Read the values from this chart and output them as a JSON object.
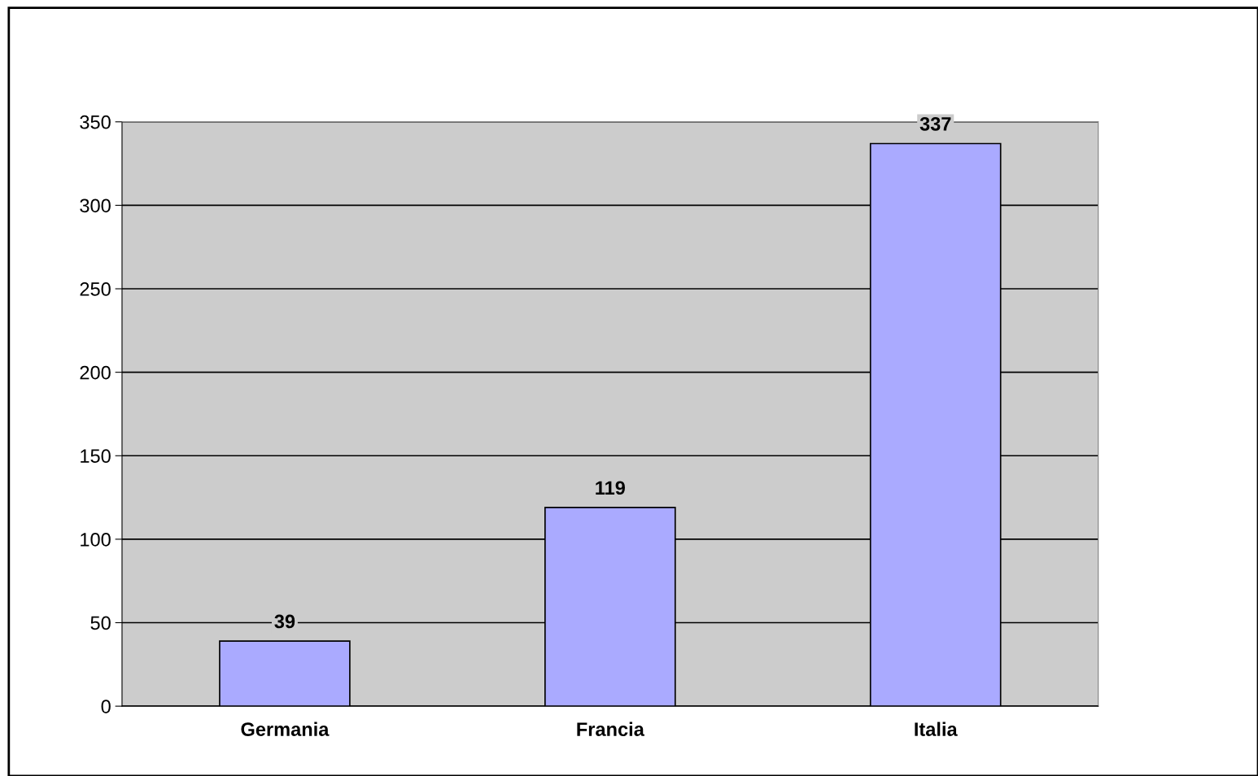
{
  "chart_data": {
    "type": "bar",
    "categories": [
      "Germania",
      "Francia",
      "Italia"
    ],
    "values": [
      39,
      119,
      337
    ],
    "color": "#aaaaff",
    "ylim": [
      0,
      350
    ],
    "yticks": [
      0,
      50,
      100,
      150,
      200,
      250,
      300,
      350
    ],
    "grid": "y",
    "data_labels": true
  }
}
